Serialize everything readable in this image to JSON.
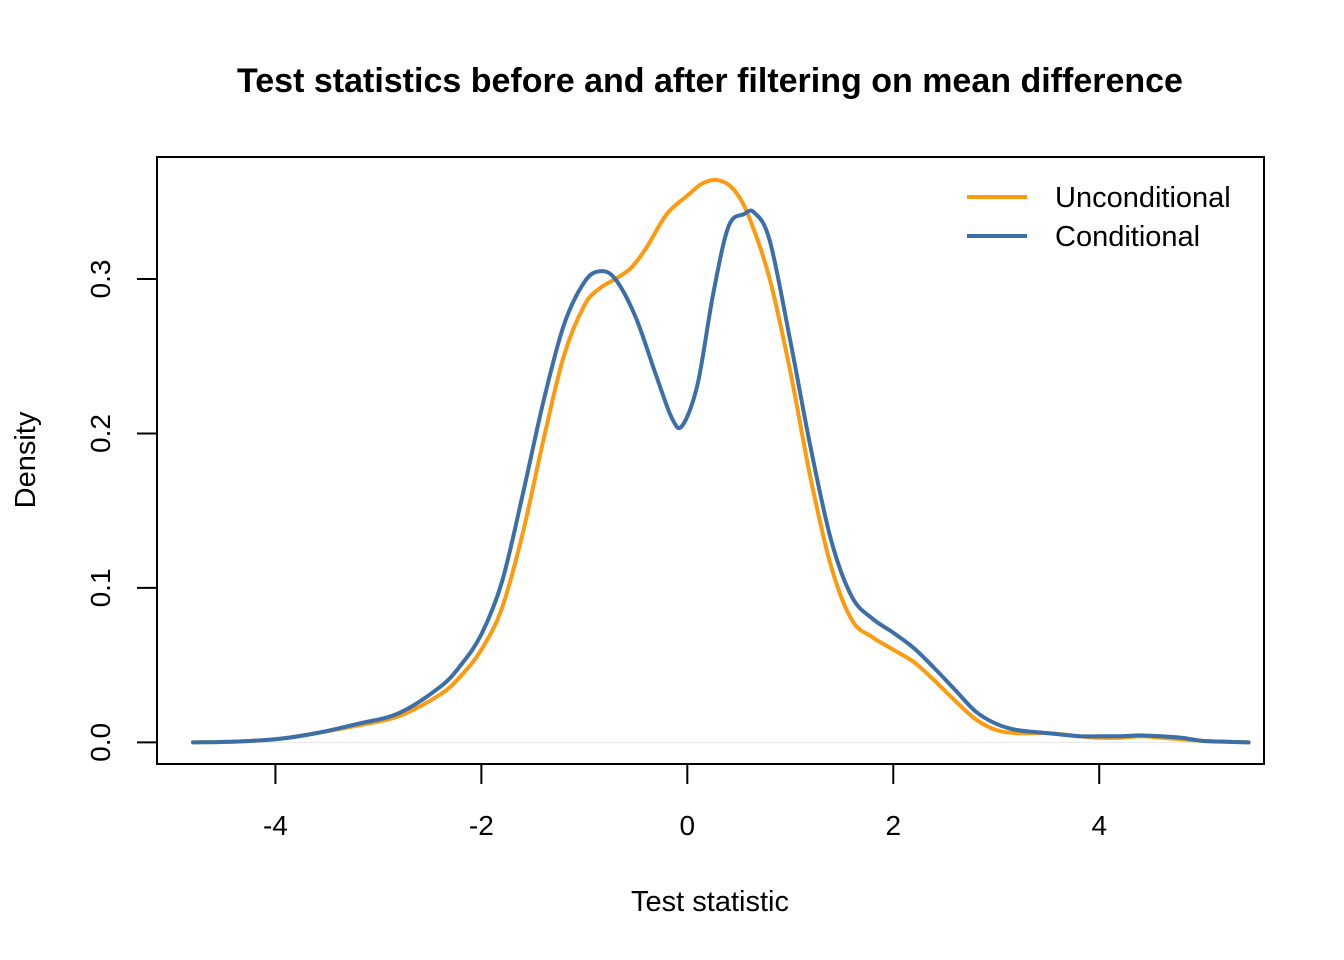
{
  "chart_data": {
    "type": "line",
    "title": "Test statistics before and after filtering on mean difference",
    "xlabel": "Test statistic",
    "ylabel": "Density",
    "xlim": [
      -5.15,
      5.6
    ],
    "ylim": [
      -0.014,
      0.379
    ],
    "x_ticks": [
      -4,
      -2,
      0,
      2,
      4
    ],
    "y_ticks": [
      0.0,
      0.1,
      0.2,
      0.3
    ],
    "x_tick_labels": [
      "-4",
      "-2",
      "0",
      "2",
      "4"
    ],
    "y_tick_labels": [
      "0.0",
      "0.1",
      "0.2",
      "0.3"
    ],
    "grid": false,
    "legend_position": "top-right",
    "baseline": 0,
    "series": [
      {
        "name": "Unconditional",
        "color": "#FF9A0E",
        "x": [
          -4.8,
          -4.4,
          -4.0,
          -3.6,
          -3.2,
          -2.8,
          -2.4,
          -2.2,
          -2.0,
          -1.8,
          -1.6,
          -1.4,
          -1.2,
          -1.0,
          -0.85,
          -0.7,
          -0.55,
          -0.4,
          -0.2,
          0.0,
          0.15,
          0.3,
          0.45,
          0.6,
          0.8,
          1.0,
          1.2,
          1.4,
          1.6,
          1.8,
          2.0,
          2.2,
          2.4,
          2.6,
          2.8,
          3.0,
          3.2,
          3.5,
          3.8,
          4.0,
          4.2,
          4.4,
          4.6,
          4.8,
          5.0,
          5.2,
          5.45
        ],
        "y": [
          0.0,
          0.0005,
          0.002,
          0.006,
          0.011,
          0.017,
          0.031,
          0.043,
          0.06,
          0.087,
          0.135,
          0.195,
          0.25,
          0.283,
          0.294,
          0.3,
          0.307,
          0.32,
          0.342,
          0.354,
          0.362,
          0.364,
          0.358,
          0.34,
          0.3,
          0.24,
          0.17,
          0.113,
          0.079,
          0.068,
          0.06,
          0.052,
          0.04,
          0.027,
          0.015,
          0.008,
          0.006,
          0.006,
          0.004,
          0.003,
          0.003,
          0.004,
          0.003,
          0.002,
          0.001,
          0.0005,
          0.0
        ]
      },
      {
        "name": "Conditional",
        "color": "#3B6FA8",
        "x": [
          -4.8,
          -4.4,
          -4.0,
          -3.6,
          -3.2,
          -2.8,
          -2.4,
          -2.2,
          -2.0,
          -1.8,
          -1.6,
          -1.4,
          -1.2,
          -1.0,
          -0.85,
          -0.7,
          -0.5,
          -0.3,
          -0.15,
          -0.05,
          0.1,
          0.25,
          0.4,
          0.55,
          0.65,
          0.8,
          1.0,
          1.2,
          1.4,
          1.6,
          1.8,
          2.0,
          2.2,
          2.4,
          2.6,
          2.8,
          3.0,
          3.2,
          3.5,
          3.8,
          4.0,
          4.2,
          4.4,
          4.6,
          4.8,
          5.0,
          5.2,
          5.45
        ],
        "y": [
          0.0,
          0.0005,
          0.002,
          0.006,
          0.012,
          0.019,
          0.036,
          0.05,
          0.07,
          0.104,
          0.16,
          0.22,
          0.27,
          0.298,
          0.305,
          0.3,
          0.275,
          0.237,
          0.21,
          0.205,
          0.232,
          0.29,
          0.334,
          0.342,
          0.343,
          0.325,
          0.26,
          0.19,
          0.13,
          0.094,
          0.08,
          0.071,
          0.061,
          0.048,
          0.034,
          0.02,
          0.012,
          0.008,
          0.006,
          0.004,
          0.004,
          0.004,
          0.0045,
          0.004,
          0.003,
          0.001,
          0.0005,
          0.0
        ]
      }
    ]
  }
}
